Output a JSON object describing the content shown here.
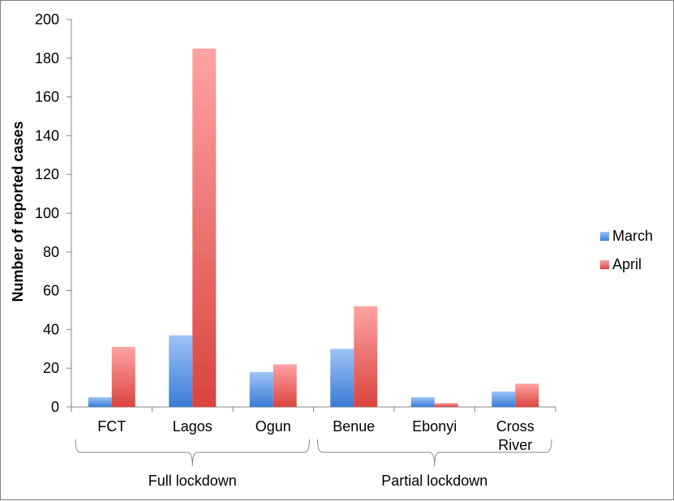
{
  "chart_data": {
    "type": "bar",
    "title": "",
    "xlabel": "",
    "ylabel": "Number of reported cases",
    "ylim": [
      0,
      200
    ],
    "yticks": [
      0,
      20,
      40,
      60,
      80,
      100,
      120,
      140,
      160,
      180,
      200
    ],
    "categories": [
      "FCT",
      "Lagos",
      "Ogun",
      "Benue",
      "Ebonyi",
      "Cross\nRiver"
    ],
    "groups": [
      {
        "label": "Full lockdown",
        "categories": [
          "FCT",
          "Lagos",
          "Ogun"
        ]
      },
      {
        "label": "Partial lockdown",
        "categories": [
          "Benue",
          "Ebonyi",
          "Cross\nRiver"
        ]
      }
    ],
    "series": [
      {
        "name": "March",
        "values": [
          5,
          37,
          18,
          30,
          5,
          8
        ],
        "color": "#4f81bd"
      },
      {
        "name": "April",
        "values": [
          31,
          185,
          22,
          52,
          2,
          12
        ],
        "color": "#c0504d"
      }
    ],
    "legend_position": "right",
    "grid": false
  }
}
